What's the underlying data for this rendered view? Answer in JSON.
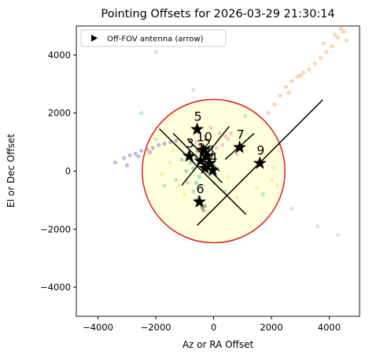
{
  "chart_data": {
    "type": "scatter",
    "title": "Pointing Offsets for 2026-03-29 21:30:14",
    "x_label": "Az or RA Offset",
    "y_label": "El or Dec Offset",
    "xlim": [
      -4750,
      5050
    ],
    "ylim": [
      -5000,
      5000
    ],
    "xticks": [
      {
        "value": -4000,
        "label": "−4000"
      },
      {
        "value": -2000,
        "label": "−2000"
      },
      0,
      2000,
      4000
    ],
    "yticks": [
      {
        "value": -4000,
        "label": "−4000"
      },
      {
        "value": -2000,
        "label": "−2000"
      },
      0,
      2000,
      4000
    ],
    "legend": {
      "label": "Off-FOV antenna (arrow)",
      "loc": "upper left"
    },
    "circle": {
      "x": 0,
      "y": 0,
      "radius": 2470,
      "edgecolor": "#e31a1c",
      "facecolor": "#ffffdc"
    },
    "series": [
      {
        "color": "#fdae6b",
        "x": [
          1900,
          2100,
          2300,
          2500,
          2700,
          2900,
          3100,
          3300,
          3500,
          3700,
          3900,
          4100,
          4300,
          4500,
          3800,
          4200,
          3000,
          4600,
          2600,
          4400
        ],
        "y": [
          2000,
          2300,
          2600,
          2900,
          3100,
          3250,
          3400,
          3500,
          3700,
          3900,
          4100,
          4300,
          4600,
          4800,
          4400,
          4700,
          3300,
          4500,
          2700,
          4900
        ]
      },
      {
        "color": "#9e7cc1",
        "x": [
          -3400,
          -3100,
          -2900,
          -2700,
          -2500,
          -2300,
          -2100,
          -1900,
          -1700,
          -1500,
          -1300,
          -3000,
          -2600,
          -2200
        ],
        "y": [
          300,
          450,
          550,
          600,
          700,
          750,
          800,
          900,
          950,
          1000,
          1050,
          200,
          500,
          650
        ]
      },
      {
        "color": "#f1a1b8",
        "x": [
          -100,
          200,
          400,
          -600,
          300,
          500,
          100,
          -300,
          800,
          600
        ],
        "y": [
          1500,
          1300,
          1200,
          1000,
          900,
          1100,
          800,
          1200,
          600,
          1300
        ]
      },
      {
        "color": "#d9ef8b",
        "x": [
          -1800,
          -1500,
          -1200,
          -1000,
          500,
          1000,
          1500,
          2000,
          2200,
          2100,
          800,
          -1400,
          300,
          -200
        ],
        "y": [
          -100,
          300,
          -500,
          -800,
          -200,
          -300,
          -600,
          -300,
          -500,
          100,
          -900,
          700,
          -600,
          -1400
        ]
      },
      {
        "color": "#66c2a5",
        "x": [
          -1100,
          -900,
          -800,
          -700,
          -600,
          -500,
          -400,
          -300,
          -200,
          -100,
          0,
          -950,
          -600
        ],
        "y": [
          400,
          600,
          300,
          100,
          500,
          -200,
          400,
          0,
          200,
          -100,
          300,
          0,
          -400
        ]
      },
      {
        "color": "#80cdc1",
        "x": [
          -2500,
          -1700,
          -900,
          -700,
          0,
          400,
          1700,
          -400,
          -1300
        ],
        "y": [
          2000,
          -500,
          -400,
          -700,
          -400,
          -700,
          -800,
          -500,
          -300
        ]
      },
      {
        "color": "#8c6d4f",
        "x": [
          -500,
          -450,
          -400,
          -350,
          -600,
          -300
        ],
        "y": [
          -900,
          -1100,
          -1250,
          -1350,
          -1000,
          -1200
        ]
      },
      {
        "color": "#d73027",
        "x": [
          -450,
          -350,
          -250,
          -550,
          -300
        ],
        "y": [
          900,
          750,
          600,
          700,
          400
        ]
      },
      {
        "color": "#c8c8c8",
        "x": [
          -2000,
          -700,
          3600,
          4300,
          2700,
          1100,
          -2000
        ],
        "y": [
          4100,
          2800,
          -1900,
          -2200,
          -1300,
          1900,
          1100
        ]
      }
    ],
    "segments": [
      {
        "x": [
          -570,
          3780
        ],
        "y": [
          -1870,
          2460
        ]
      },
      {
        "x": [
          -1880,
          1120
        ],
        "y": [
          1460,
          -1490
        ]
      },
      {
        "x": [
          -1100,
          540
        ],
        "y": [
          -490,
          1540
        ]
      },
      {
        "x": [
          -1400,
          300
        ],
        "y": [
          1300,
          -400
        ]
      },
      {
        "x": [
          400,
          1400
        ],
        "y": [
          400,
          1300
        ]
      },
      {
        "x": [
          -900,
          200
        ],
        "y": [
          1100,
          0
        ]
      }
    ],
    "stars": {
      "color": "#000000",
      "x": [
        -300,
        -450,
        -250,
        -840,
        -30,
        -570,
        -490,
        900,
        -140,
        1600,
        -350
      ],
      "y": [
        100,
        350,
        500,
        515,
        30,
        1440,
        -1060,
        815,
        270,
        270,
        730
      ],
      "labels": [
        "0",
        "1",
        "2",
        "3",
        "4",
        "5",
        "6",
        "7",
        "8",
        "9",
        "10"
      ]
    }
  }
}
